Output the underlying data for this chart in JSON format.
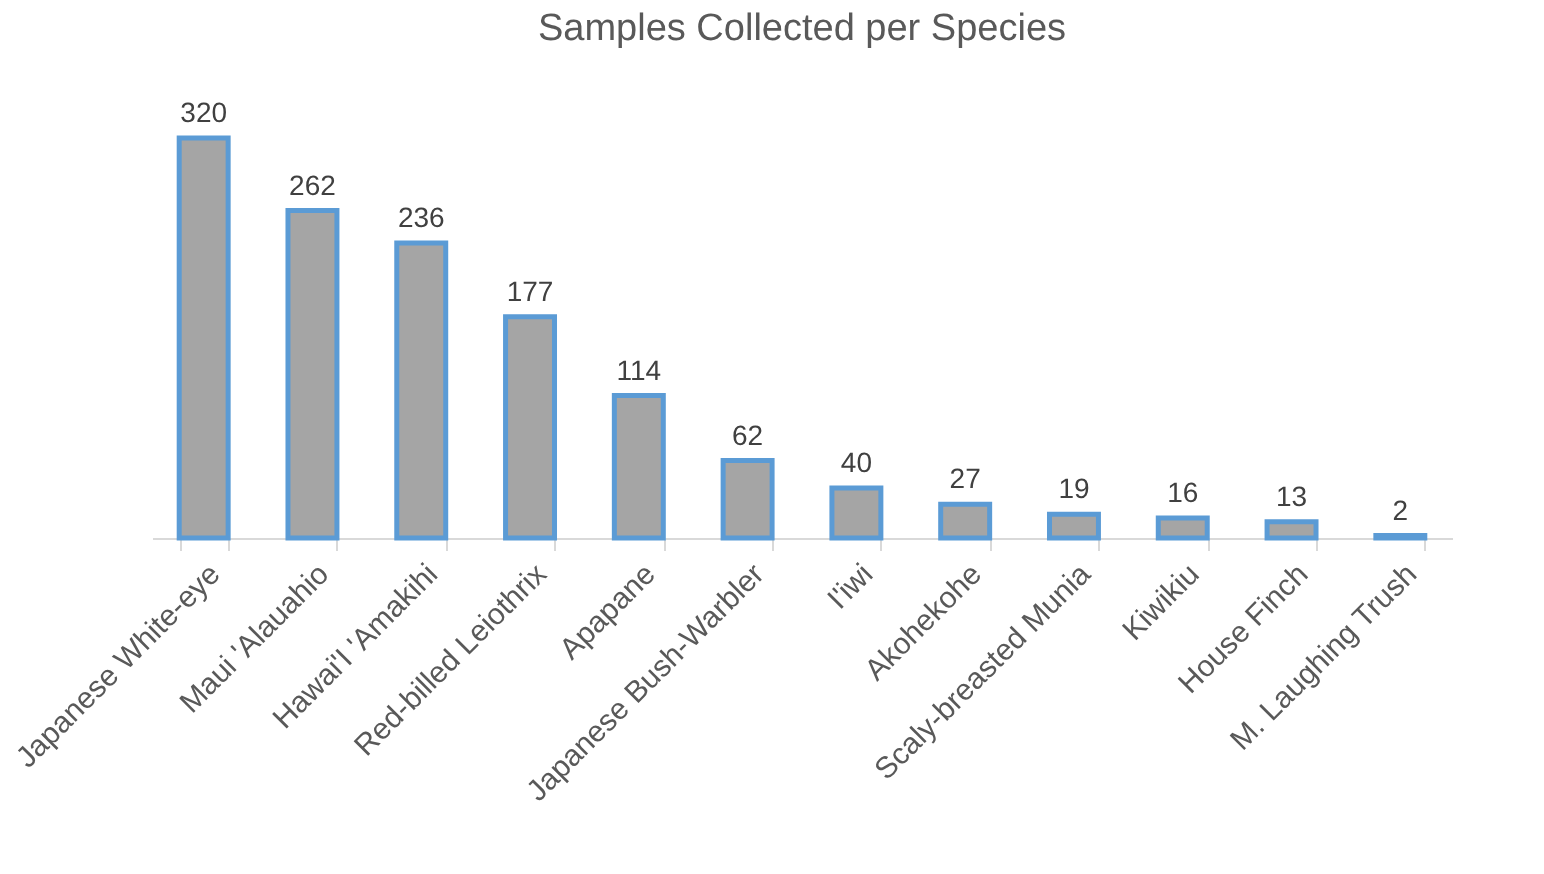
{
  "chart_data": {
    "type": "bar",
    "title": "Samples Collected per Species",
    "categories": [
      "Japanese White-eye",
      "Maui 'Alauahio",
      "Hawai'I 'Amakihi",
      "Red-billed Leiothrix",
      "Apapane",
      "Japanese Bush-Warbler",
      "I'iwi",
      "Akohekohe",
      "Scaly-breasted Munia",
      "Kiwikiu",
      "House Finch",
      "M. Laughing Trush"
    ],
    "values": [
      320,
      262,
      236,
      177,
      114,
      62,
      40,
      27,
      19,
      16,
      13,
      2
    ],
    "color": "#a5a5a5",
    "data_labels": true
  }
}
